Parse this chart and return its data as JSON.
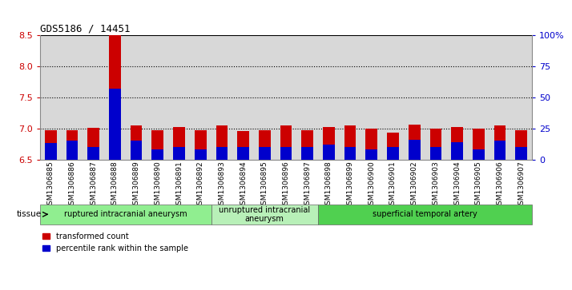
{
  "title": "GDS5186 / 14451",
  "samples": [
    "GSM1306885",
    "GSM1306886",
    "GSM1306887",
    "GSM1306888",
    "GSM1306889",
    "GSM1306890",
    "GSM1306891",
    "GSM1306892",
    "GSM1306893",
    "GSM1306894",
    "GSM1306895",
    "GSM1306896",
    "GSM1306897",
    "GSM1306898",
    "GSM1306899",
    "GSM1306900",
    "GSM1306901",
    "GSM1306902",
    "GSM1306903",
    "GSM1306904",
    "GSM1306905",
    "GSM1306906",
    "GSM1306907"
  ],
  "red_values": [
    6.97,
    6.97,
    7.01,
    8.5,
    7.05,
    6.97,
    7.02,
    6.97,
    7.05,
    6.96,
    6.97,
    7.05,
    6.97,
    7.02,
    7.05,
    7.0,
    6.93,
    7.06,
    7.0,
    7.02,
    7.0,
    7.05,
    6.97
  ],
  "blue_percentiles": [
    13,
    15,
    10,
    57,
    15,
    8,
    10,
    8,
    10,
    10,
    10,
    10,
    10,
    12,
    10,
    8,
    10,
    16,
    10,
    14,
    8,
    15,
    10
  ],
  "ylim_left": [
    6.5,
    8.5
  ],
  "ylim_right": [
    0,
    100
  ],
  "yticks_left": [
    6.5,
    7.0,
    7.5,
    8.0,
    8.5
  ],
  "yticks_right": [
    0,
    25,
    50,
    75,
    100
  ],
  "ytick_labels_right": [
    "0",
    "25",
    "50",
    "75",
    "100%"
  ],
  "bar_baseline": 6.5,
  "bar_width": 0.55,
  "tissue_groups": [
    {
      "label": "ruptured intracranial aneurysm",
      "start": 0,
      "end": 8,
      "color": "#90EE90"
    },
    {
      "label": "unruptured intracranial\naneurysm",
      "start": 8,
      "end": 13,
      "color": "#b8f0b8"
    },
    {
      "label": "superficial temporal artery",
      "start": 13,
      "end": 23,
      "color": "#50d050"
    }
  ],
  "red_color": "#cc0000",
  "blue_color": "#0000cc",
  "grid_color": "black",
  "bg_color": "#d8d8d8",
  "plot_bg": "#ffffff",
  "left_label_color": "#cc0000",
  "right_label_color": "#0000cc"
}
